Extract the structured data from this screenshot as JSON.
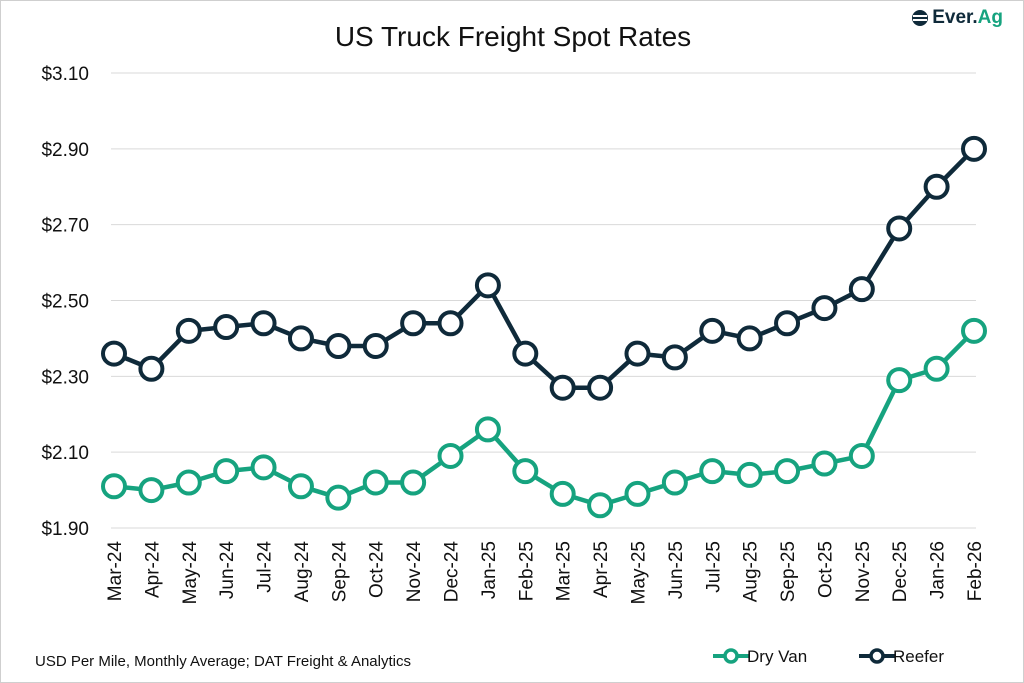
{
  "logo": {
    "part1": "Ever.",
    "part2": "Ag"
  },
  "source": "USD Per Mile, Monthly Average; DAT Freight & Analytics",
  "chart_data": {
    "type": "line",
    "title": "US Truck Freight Spot Rates",
    "xlabel": "",
    "ylabel": "",
    "ylim": [
      1.9,
      3.1
    ],
    "yticks": [
      1.9,
      2.1,
      2.3,
      2.5,
      2.7,
      2.9,
      3.1
    ],
    "ytick_labels": [
      "$1.90",
      "$2.10",
      "$2.30",
      "$2.50",
      "$2.70",
      "$2.90",
      "$3.10"
    ],
    "grid": true,
    "legend_position": "bottom-right",
    "categories": [
      "Mar-24",
      "Apr-24",
      "May-24",
      "Jun-24",
      "Jul-24",
      "Aug-24",
      "Sep-24",
      "Oct-24",
      "Nov-24",
      "Dec-24",
      "Jan-25",
      "Feb-25",
      "Mar-25",
      "Apr-25",
      "May-25",
      "Jun-25",
      "Jul-25",
      "Aug-25",
      "Sep-25",
      "Oct-25",
      "Nov-25",
      "Dec-25",
      "Jan-26",
      "Feb-26"
    ],
    "series": [
      {
        "name": "Dry Van",
        "color": "#16a37f",
        "values": [
          2.01,
          2.0,
          2.02,
          2.05,
          2.06,
          2.01,
          1.98,
          2.02,
          2.02,
          2.09,
          2.16,
          2.05,
          1.99,
          1.96,
          1.99,
          2.02,
          2.05,
          2.04,
          2.05,
          2.07,
          2.09,
          2.29,
          2.32,
          2.42
        ]
      },
      {
        "name": "Reefer",
        "color": "#0f2a3a",
        "values": [
          2.36,
          2.32,
          2.42,
          2.43,
          2.44,
          2.4,
          2.38,
          2.38,
          2.44,
          2.44,
          2.54,
          2.36,
          2.27,
          2.27,
          2.36,
          2.35,
          2.42,
          2.4,
          2.44,
          2.48,
          2.53,
          2.69,
          2.8,
          2.9
        ]
      }
    ]
  }
}
